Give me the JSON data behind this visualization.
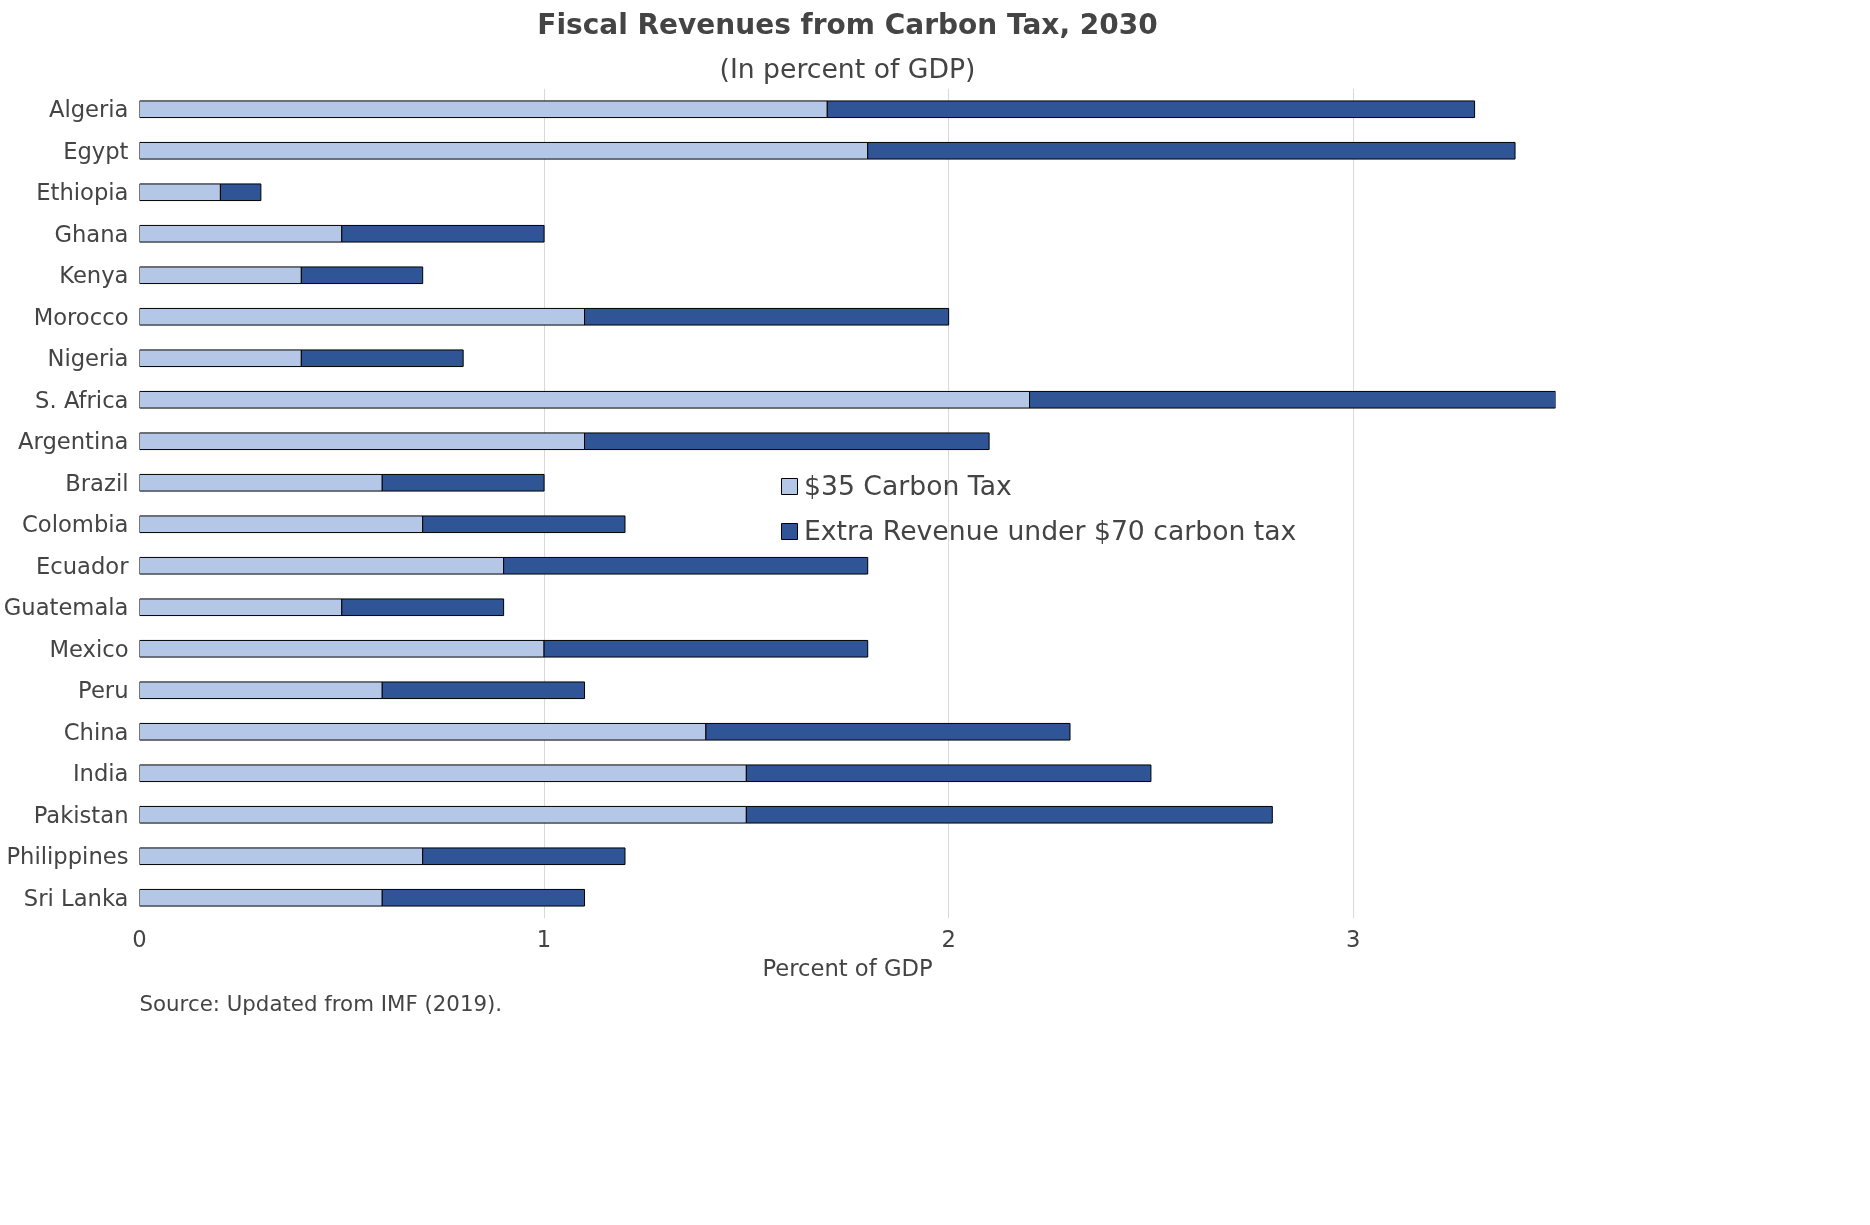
{
  "chart_data": {
    "type": "bar",
    "orientation": "horizontal",
    "stacked": true,
    "title": "Fiscal Revenues from Carbon Tax, 2030",
    "subtitle": "(In percent of GDP)",
    "xlabel": "Percent of GDP",
    "categories": [
      "Algeria",
      "Egypt",
      "Ethiopia",
      "Ghana",
      "Kenya",
      "Morocco",
      "Nigeria",
      "S. Africa",
      "Argentina",
      "Brazil",
      "Colombia",
      "Ecuador",
      "Guatemala",
      "Mexico",
      "Peru",
      "China",
      "India",
      "Pakistan",
      "Philippines",
      "Sri Lanka"
    ],
    "series": [
      {
        "name": "$35 Carbon Tax",
        "color": "#b4c7e7",
        "values": [
          1.7,
          1.8,
          0.2,
          0.5,
          0.4,
          1.1,
          0.4,
          2.2,
          1.1,
          0.6,
          0.7,
          0.9,
          0.5,
          1.0,
          0.6,
          1.4,
          1.5,
          1.5,
          0.7,
          0.6
        ]
      },
      {
        "name": "Extra Revenue under $70 carbon tax",
        "color": "#2f5597",
        "values": [
          1.6,
          1.6,
          0.1,
          0.5,
          0.3,
          0.9,
          0.4,
          1.3,
          1.0,
          0.4,
          0.5,
          0.9,
          0.4,
          0.8,
          0.5,
          0.9,
          1.0,
          1.3,
          0.5,
          0.5
        ]
      }
    ],
    "xlim": [
      0,
      3.5
    ],
    "xticks": [
      0,
      1,
      2,
      3
    ],
    "grid": "x",
    "legend": "right",
    "annotations": [
      "Source: Updated from IMF (2019)."
    ]
  }
}
